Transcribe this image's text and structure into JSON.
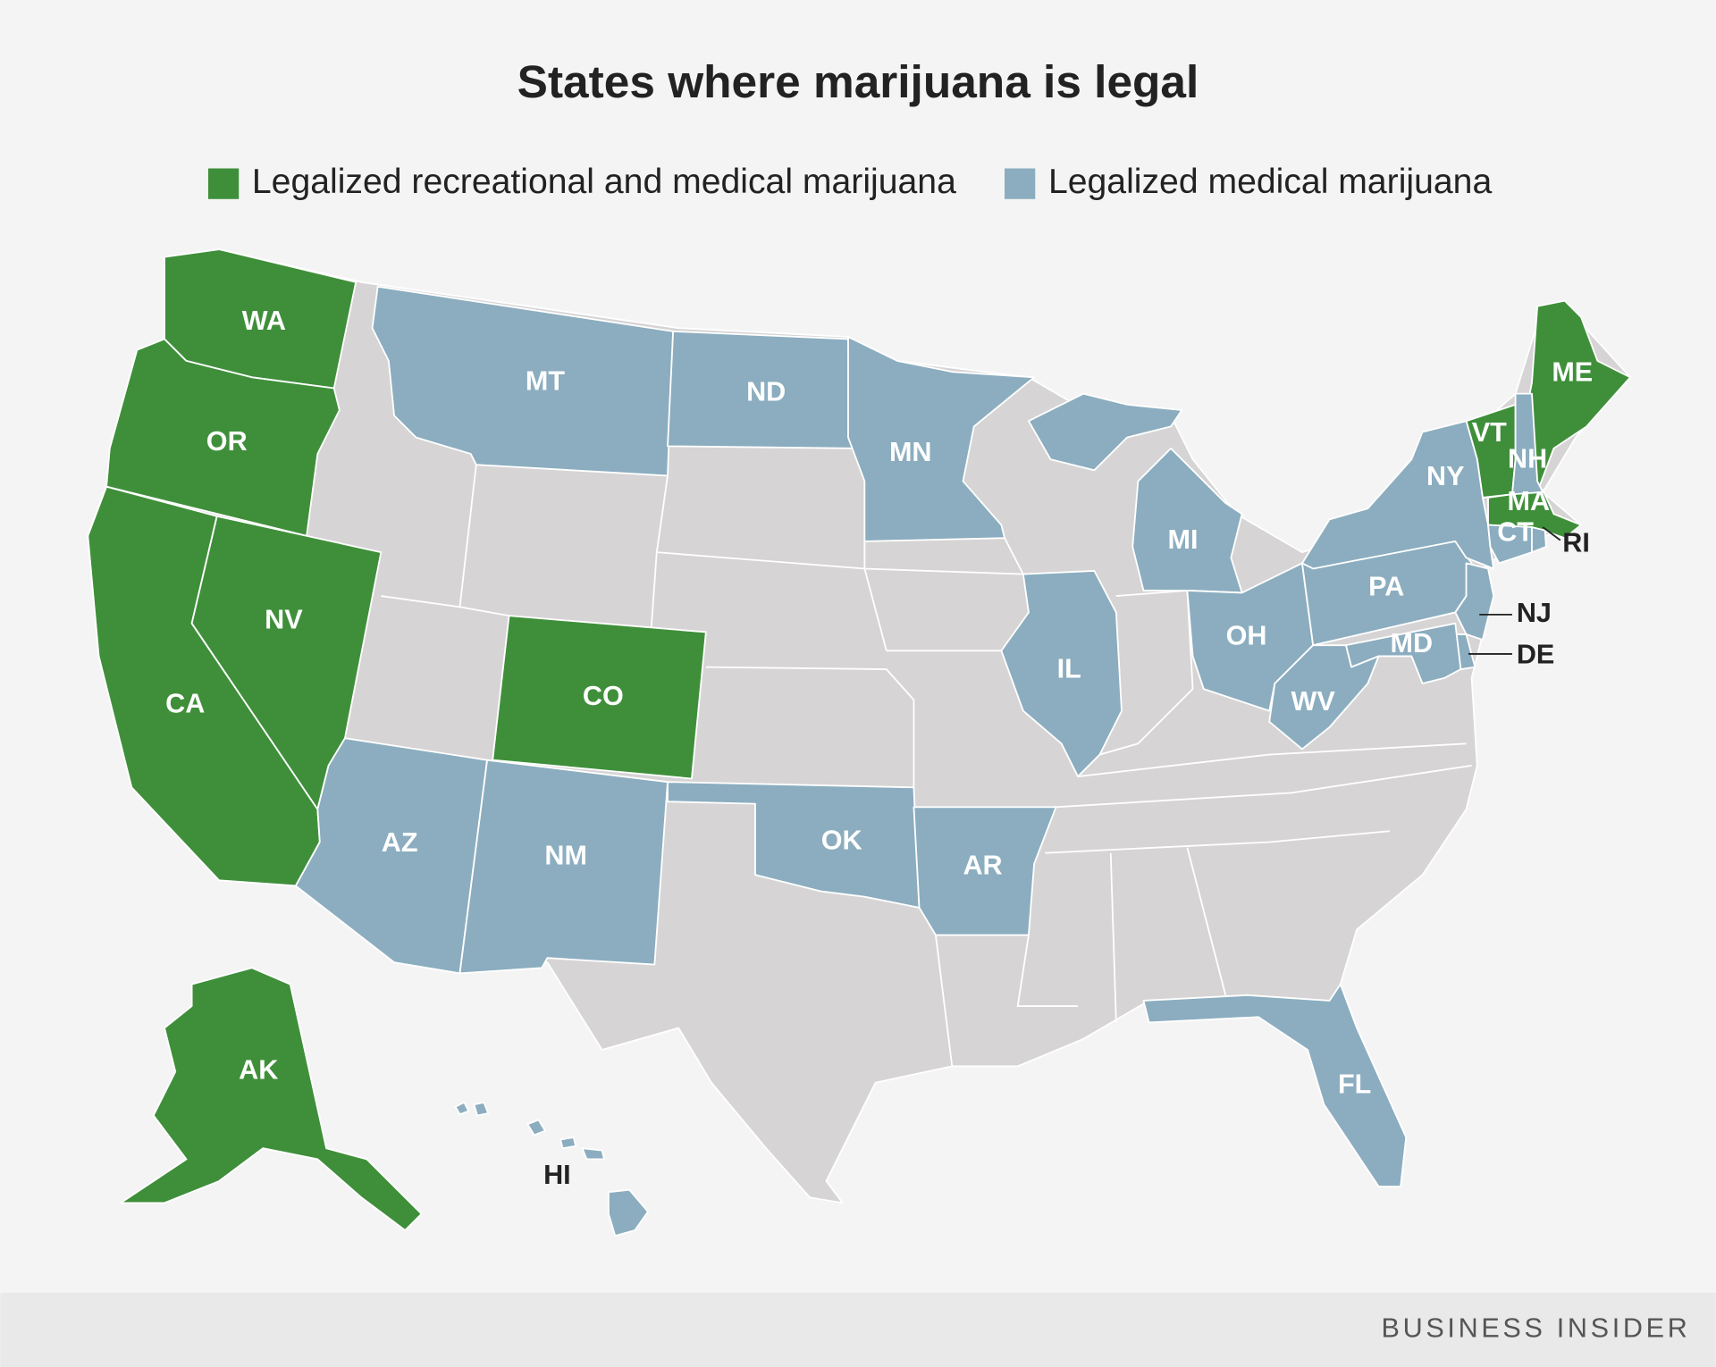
{
  "title": "States where marijuana is legal",
  "legend": [
    {
      "label": "Legalized recreational and medical marijuana",
      "color": "#3f8f3a",
      "states": [
        "WA",
        "OR",
        "CA",
        "NV",
        "CO",
        "AK",
        "ME",
        "VT",
        "MA"
      ]
    },
    {
      "label": "Legalized medical marijuana",
      "color": "#8badbf",
      "states": [
        "MT",
        "ND",
        "MN",
        "MI",
        "IL",
        "OH",
        "PA",
        "NY",
        "NH",
        "CT",
        "RI",
        "NJ",
        "DE",
        "MD",
        "WV",
        "FL",
        "AZ",
        "NM",
        "OK",
        "AR",
        "HI"
      ]
    }
  ],
  "footer": "BUSINESS INSIDER"
}
